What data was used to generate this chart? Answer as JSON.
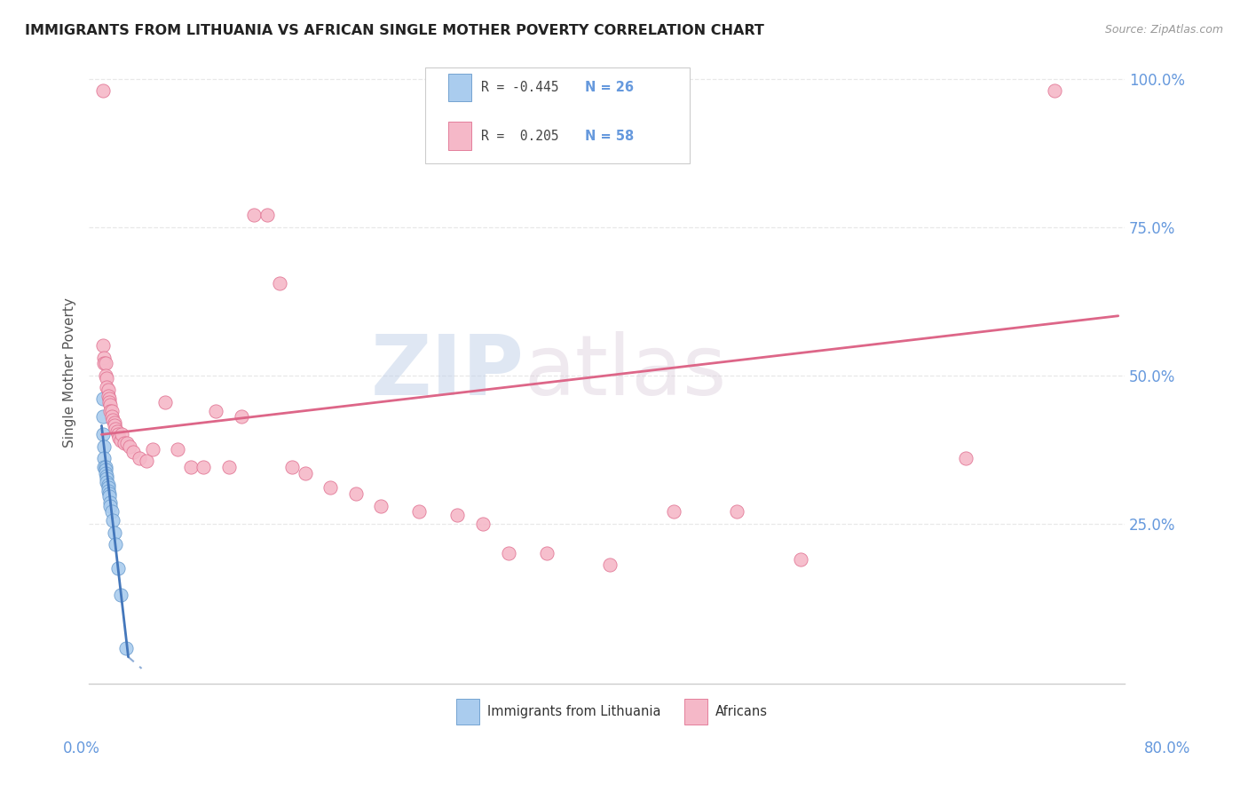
{
  "title": "IMMIGRANTS FROM LITHUANIA VS AFRICAN SINGLE MOTHER POVERTY CORRELATION CHART",
  "source": "Source: ZipAtlas.com",
  "ylabel": "Single Mother Poverty",
  "r_lithuania": -0.445,
  "n_lithuania": 26,
  "r_africans": 0.205,
  "n_africans": 58,
  "legend_label1": "Immigrants from Lithuania",
  "legend_label2": "Africans",
  "watermark_zip": "ZIP",
  "watermark_atlas": "atlas",
  "blue_color": "#aaccee",
  "blue_edge": "#6699cc",
  "pink_color": "#f5b8c8",
  "pink_edge": "#e07090",
  "blue_line": "#4477bb",
  "pink_line": "#dd6688",
  "axis_color": "#cccccc",
  "grid_color": "#e8e8e8",
  "right_label_color": "#6699dd",
  "title_color": "#222222",
  "source_color": "#999999",
  "blue_pts_x": [
    0.001,
    0.001,
    0.001,
    0.002,
    0.002,
    0.002,
    0.003,
    0.003,
    0.003,
    0.004,
    0.004,
    0.004,
    0.005,
    0.005,
    0.005,
    0.006,
    0.006,
    0.007,
    0.007,
    0.008,
    0.009,
    0.01,
    0.011,
    0.013,
    0.015,
    0.019
  ],
  "blue_pts_y": [
    0.46,
    0.43,
    0.4,
    0.38,
    0.36,
    0.345,
    0.345,
    0.34,
    0.335,
    0.33,
    0.325,
    0.32,
    0.315,
    0.31,
    0.305,
    0.3,
    0.295,
    0.285,
    0.28,
    0.27,
    0.255,
    0.235,
    0.215,
    0.175,
    0.13,
    0.04
  ],
  "pink_pts_x": [
    0.001,
    0.001,
    0.002,
    0.002,
    0.003,
    0.003,
    0.004,
    0.004,
    0.005,
    0.005,
    0.006,
    0.006,
    0.007,
    0.007,
    0.008,
    0.008,
    0.009,
    0.01,
    0.01,
    0.011,
    0.012,
    0.013,
    0.014,
    0.015,
    0.016,
    0.018,
    0.02,
    0.022,
    0.025,
    0.03,
    0.035,
    0.04,
    0.05,
    0.06,
    0.07,
    0.08,
    0.09,
    0.1,
    0.11,
    0.12,
    0.13,
    0.14,
    0.15,
    0.16,
    0.18,
    0.2,
    0.22,
    0.25,
    0.28,
    0.3,
    0.32,
    0.35,
    0.4,
    0.45,
    0.5,
    0.55,
    0.68,
    0.75
  ],
  "pink_pts_y": [
    0.98,
    0.55,
    0.53,
    0.52,
    0.52,
    0.5,
    0.495,
    0.48,
    0.475,
    0.465,
    0.46,
    0.455,
    0.45,
    0.44,
    0.44,
    0.43,
    0.425,
    0.42,
    0.415,
    0.41,
    0.405,
    0.4,
    0.395,
    0.39,
    0.4,
    0.385,
    0.385,
    0.38,
    0.37,
    0.36,
    0.355,
    0.375,
    0.455,
    0.375,
    0.345,
    0.345,
    0.44,
    0.345,
    0.43,
    0.77,
    0.77,
    0.655,
    0.345,
    0.335,
    0.31,
    0.3,
    0.28,
    0.27,
    0.265,
    0.25,
    0.2,
    0.2,
    0.18,
    0.27,
    0.27,
    0.19,
    0.36,
    0.98
  ],
  "blue_trend_x": [
    0.0,
    0.021
  ],
  "blue_trend_y": [
    0.415,
    0.025
  ],
  "pink_trend_x": [
    0.0,
    0.8
  ],
  "pink_trend_y": [
    0.4,
    0.6
  ],
  "xlim": [
    0.0,
    0.8
  ],
  "ylim": [
    0.0,
    1.03
  ],
  "ytick_vals": [
    0.25,
    0.5,
    0.75,
    1.0
  ],
  "ytick_labels": [
    "25.0%",
    "50.0%",
    "75.0%",
    "100.0%"
  ]
}
